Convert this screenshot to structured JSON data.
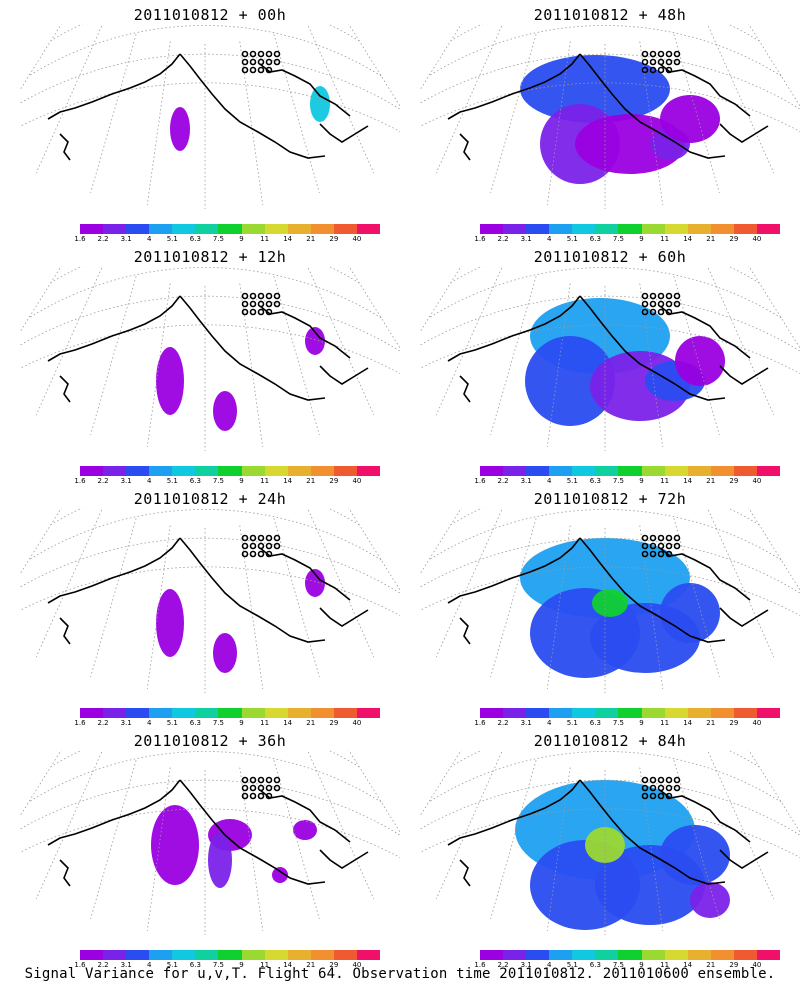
{
  "panels": [
    {
      "title": "2011010812 + 00h",
      "level": 0
    },
    {
      "title": "2011010812 + 48h",
      "level": 3
    },
    {
      "title": "2011010812 + 12h",
      "level": 1
    },
    {
      "title": "2011010812 + 60h",
      "level": 4
    },
    {
      "title": "2011010812 + 24h",
      "level": 1
    },
    {
      "title": "2011010812 + 72h",
      "level": 5
    },
    {
      "title": "2011010812 + 36h",
      "level": 2
    },
    {
      "title": "2011010812 + 84h",
      "level": 6
    }
  ],
  "colorbar": {
    "labels": [
      "1.6",
      "2.2",
      "3.1",
      "4",
      "5.1",
      "6.3",
      "7.5",
      "9",
      "11",
      "14",
      "21",
      "29",
      "40"
    ],
    "colors": [
      "#9a00e0",
      "#7a22e8",
      "#2a4cf0",
      "#1ea0f0",
      "#10c8e0",
      "#10d0a0",
      "#10d030",
      "#9ad832",
      "#d8d832",
      "#e8b030",
      "#f09030",
      "#f05a30",
      "#f0106a"
    ]
  },
  "footer": "Signal Variance for u,v,T. Flight 64. Observation time 2011010812. 2011010600 ensemble."
}
